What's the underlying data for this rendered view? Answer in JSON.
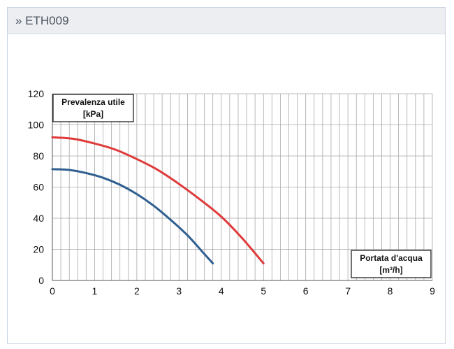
{
  "panel": {
    "title": "» ETH009"
  },
  "chart_data": {
    "type": "line",
    "xlim": [
      0,
      9
    ],
    "ylim": [
      0,
      120
    ],
    "x_ticks": [
      0,
      1,
      2,
      3,
      4,
      5,
      6,
      7,
      8,
      9
    ],
    "y_ticks": [
      0,
      20,
      40,
      60,
      80,
      100,
      120
    ],
    "ylabel_lines": [
      "Prevalenza utile",
      "[kPa]"
    ],
    "xlabel_lines": [
      "Portata d'acqua",
      "[m³/h]"
    ],
    "grid": true,
    "series": [
      {
        "color": "#e03a3a",
        "x": [
          0,
          0.5,
          1,
          1.5,
          2,
          2.5,
          3,
          3.5,
          4,
          4.5,
          5
        ],
        "y": [
          92,
          91,
          88,
          84,
          78,
          71,
          62,
          52,
          41,
          27,
          11
        ]
      },
      {
        "color": "#2f5f8f",
        "x": [
          0,
          0.4,
          0.8,
          1.2,
          1.6,
          2.0,
          2.4,
          2.8,
          3.2,
          3.6,
          3.8
        ],
        "y": [
          71.5,
          71,
          69,
          66,
          61.5,
          55.5,
          48,
          39,
          29,
          17,
          11
        ]
      }
    ]
  }
}
